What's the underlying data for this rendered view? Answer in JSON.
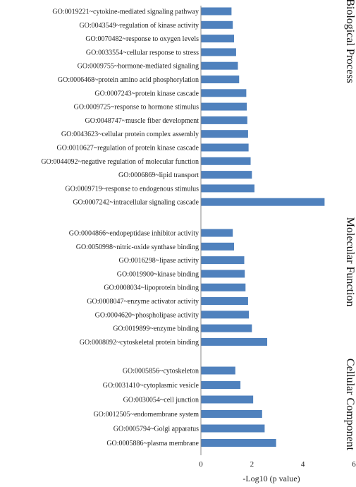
{
  "chart_data": {
    "type": "bar",
    "orientation": "horizontal",
    "xlabel": "-Log10 (p value)",
    "xlim": [
      0,
      6
    ],
    "xticks": [
      0,
      2,
      4,
      6
    ],
    "bar_color": "#4f81bd",
    "grid": false,
    "groups": [
      {
        "name": "Biological Process",
        "categories": [
          "GO:0019221~cytokine-mediated signaling pathway",
          "GO:0043549~regulation of kinase activity",
          "GO:0070482~response to oxygen levels",
          "GO:0033554~cellular response to stress",
          "GO:0009755~hormone-mediated signaling",
          "GO:0006468~protein amino acid phosphorylation",
          "GO:0007243~protein kinase cascade",
          "GO:0009725~response to hormone stimulus",
          "GO:0048747~muscle fiber development",
          "GO:0043623~cellular protein complex assembly",
          "GO:0010627~regulation of protein kinase cascade",
          "GO:0044092~negative regulation of molecular function",
          "GO:0006869~lipid transport",
          "GO:0009719~response to endogenous stimulus",
          "GO:0007242~intracellular signaling cascade"
        ],
        "values": [
          1.2,
          1.25,
          1.3,
          1.38,
          1.45,
          1.5,
          1.78,
          1.8,
          1.82,
          1.85,
          1.87,
          1.95,
          2.0,
          2.1,
          4.85
        ]
      },
      {
        "name": "Molecular Function",
        "categories": [
          "GO:0004866~endopeptidase inhibitor activity",
          "GO:0050998~nitric-oxide synthase binding",
          "GO:0016298~lipase activity",
          "GO:0019900~kinase binding",
          "GO:0008034~lipoprotein binding",
          "GO:0008047~enzyme activator activity",
          "GO:0004620~phospholipase activity",
          "GO:0019899~enzyme binding",
          "GO:0008092~cytoskeletal protein binding"
        ],
        "values": [
          1.25,
          1.3,
          1.7,
          1.72,
          1.75,
          1.85,
          1.88,
          2.0,
          2.6
        ]
      },
      {
        "name": "Cellular Component",
        "categories": [
          "GO:0005856~cytoskeleton",
          "GO:0031410~cytoplasmic vesicle",
          "GO:0030054~cell junction",
          "GO:0012505~endomembrane system",
          "GO:0005794~Golgi apparatus",
          "GO:0005886~plasma membrane"
        ],
        "values": [
          1.35,
          1.55,
          2.05,
          2.4,
          2.5,
          2.95
        ]
      }
    ]
  }
}
